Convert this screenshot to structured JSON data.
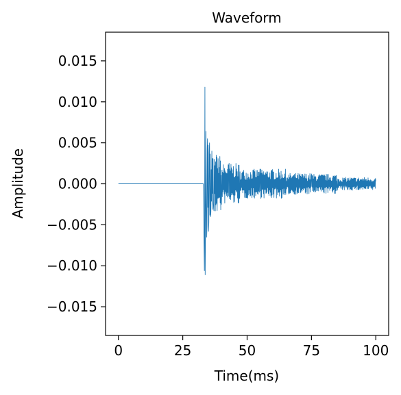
{
  "chart_data": {
    "type": "line",
    "title": "Waveform",
    "xlabel": "Time(ms)",
    "ylabel": "Amplitude",
    "xlim": [
      -5,
      105
    ],
    "ylim": [
      -0.0185,
      0.0185
    ],
    "x_ticks": [
      0,
      25,
      50,
      75,
      100
    ],
    "x_tick_labels": [
      "0",
      "25",
      "50",
      "75",
      "100"
    ],
    "y_ticks": [
      0.015,
      0.01,
      0.005,
      0.0,
      -0.005,
      -0.01,
      -0.015
    ],
    "y_tick_labels": [
      "0.015",
      "0.010",
      "0.005",
      "0.000",
      "−0.005",
      "−0.010",
      "−0.015"
    ],
    "grid": false,
    "line_color": "#1f77b4",
    "series": [
      {
        "x": [
          0,
          33.0,
          33.4,
          33.6,
          33.8,
          34.0,
          34.3,
          34.6,
          35.0,
          35.4,
          35.8,
          36.3,
          37.0,
          38.0,
          40.0,
          43.0,
          47.0,
          55.0,
          65.0,
          75.0,
          85.0,
          100.0
        ],
        "y": [
          0.0,
          0.0,
          -0.0106,
          0.0118,
          -0.0068,
          0.0064,
          -0.0065,
          0.0055,
          -0.0058,
          0.005,
          -0.004,
          0.004,
          -0.003,
          0.0035,
          -0.0025,
          0.0025,
          -0.0018,
          0.0018,
          -0.0013,
          0.0012,
          -0.0008,
          0.0003
        ]
      }
    ]
  }
}
